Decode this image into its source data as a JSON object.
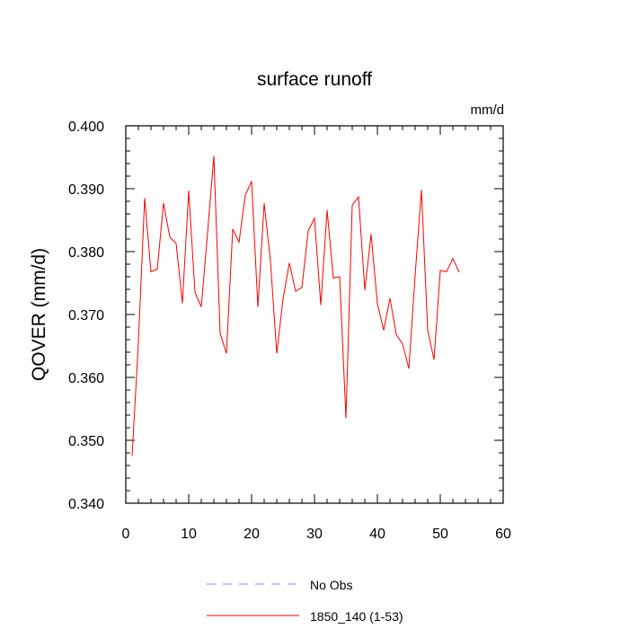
{
  "chart_data": {
    "type": "line",
    "title": "surface runoff",
    "units_label": "mm/d",
    "ylabel": "QOVER  (mm/d)",
    "xlabel": "",
    "xlim": [
      0,
      60
    ],
    "ylim": [
      0.34,
      0.4
    ],
    "x_ticks": [
      0,
      10,
      20,
      30,
      40,
      50,
      60
    ],
    "x_tick_labels": [
      "0",
      "10",
      "20",
      "30",
      "40",
      "50",
      "60"
    ],
    "y_ticks": [
      0.34,
      0.35,
      0.36,
      0.37,
      0.38,
      0.39,
      0.4
    ],
    "y_tick_labels": [
      "0.340",
      "0.350",
      "0.360",
      "0.370",
      "0.380",
      "0.390",
      "0.400"
    ],
    "grid": false,
    "legend_position": "bottom",
    "legend": [
      {
        "label": "No Obs",
        "color": "#8888ff",
        "style": "dashed"
      },
      {
        "label": "1850_140 (1-53)",
        "color": "#ff0000",
        "style": "solid"
      }
    ],
    "series": [
      {
        "name": "1850_140 (1-53)",
        "color": "#ff0000",
        "x": [
          1,
          2,
          3,
          4,
          5,
          6,
          7,
          8,
          9,
          10,
          11,
          12,
          13,
          14,
          15,
          16,
          17,
          18,
          19,
          20,
          21,
          22,
          23,
          24,
          25,
          26,
          27,
          28,
          29,
          30,
          31,
          32,
          33,
          34,
          35,
          36,
          37,
          38,
          39,
          40,
          41,
          42,
          43,
          44,
          45,
          46,
          47,
          48,
          49,
          50,
          51,
          52,
          53
        ],
        "values": [
          0.3475,
          0.3655,
          0.3885,
          0.3768,
          0.3772,
          0.3877,
          0.3823,
          0.3813,
          0.3718,
          0.3897,
          0.3735,
          0.3712,
          0.383,
          0.3952,
          0.367,
          0.3638,
          0.3836,
          0.3815,
          0.389,
          0.3912,
          0.3712,
          0.3877,
          0.3785,
          0.3638,
          0.3725,
          0.3782,
          0.3737,
          0.3743,
          0.3833,
          0.3853,
          0.3715,
          0.3866,
          0.3758,
          0.376,
          0.3535,
          0.3874,
          0.3887,
          0.3739,
          0.3828,
          0.3717,
          0.3675,
          0.3726,
          0.3668,
          0.3653,
          0.3614,
          0.3762,
          0.3898,
          0.3675,
          0.3628,
          0.377,
          0.3768,
          0.3789,
          0.3767
        ]
      }
    ]
  }
}
